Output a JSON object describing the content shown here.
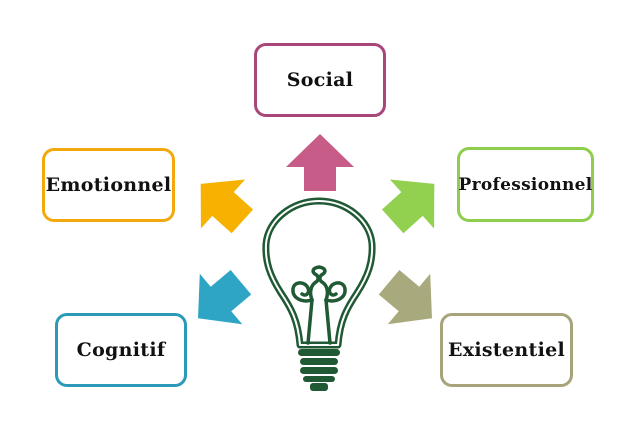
{
  "labels": {
    "social": "Social",
    "emotionnel": "Emotionnel",
    "professionnel": "Professionnel",
    "cognitif": "Cognitif",
    "existentiel": "Existentiel"
  },
  "colors": {
    "social": "#a8467a",
    "social_arrow": "#c75c88",
    "emotionnel": "#f3a90e",
    "emotionnel_arrow": "#f7b100",
    "professionnel": "#8fcd4c",
    "professionnel_arrow": "#92d050",
    "cognitif": "#2b9ab9",
    "cognitif_arrow": "#2ea5c4",
    "existentiel": "#a7a47b",
    "existentiel_arrow": "#a9a97e",
    "bulb_outline": "#1f5a34"
  },
  "icons": {
    "center": "lightbulb-icon",
    "arrows": [
      "arrow-up-icon",
      "arrow-up-left-icon",
      "arrow-up-right-icon",
      "arrow-down-left-icon",
      "arrow-down-right-icon"
    ]
  }
}
